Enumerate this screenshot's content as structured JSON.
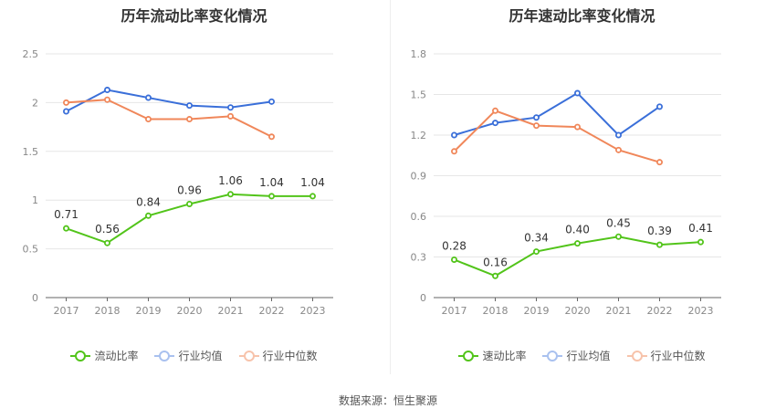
{
  "colors": {
    "main": "#52c41a",
    "avg": "#3a6fd9",
    "median": "#f0875a"
  },
  "source": "数据来源：恒生聚源",
  "chart_data": [
    {
      "type": "line",
      "title": "历年流动比率变化情况",
      "categories": [
        "2017",
        "2018",
        "2019",
        "2020",
        "2021",
        "2022",
        "2023"
      ],
      "ylim": [
        0,
        2.5
      ],
      "yticks": [
        "0",
        "0.5",
        "1",
        "1.5",
        "2",
        "2.5"
      ],
      "ytick_values": [
        0,
        0.5,
        1,
        1.5,
        2,
        2.5
      ],
      "series": [
        {
          "name": "流动比率",
          "key": "main",
          "values": [
            0.71,
            0.56,
            0.84,
            0.96,
            1.06,
            1.04,
            1.04
          ],
          "labels": [
            "0.71",
            "0.56",
            "0.84",
            "0.96",
            "1.06",
            "1.04",
            "1.04"
          ]
        },
        {
          "name": "行业均值",
          "key": "avg",
          "values": [
            1.91,
            2.13,
            2.05,
            1.97,
            1.95,
            2.01,
            null
          ]
        },
        {
          "name": "行业中位数",
          "key": "median",
          "values": [
            2.0,
            2.03,
            1.83,
            1.83,
            1.86,
            1.65,
            null
          ]
        }
      ]
    },
    {
      "type": "line",
      "title": "历年速动比率变化情况",
      "categories": [
        "2017",
        "2018",
        "2019",
        "2020",
        "2021",
        "2022",
        "2023"
      ],
      "ylim": [
        0,
        1.8
      ],
      "yticks": [
        "0",
        "0.3",
        "0.6",
        "0.9",
        "1.2",
        "1.5",
        "1.8"
      ],
      "ytick_values": [
        0,
        0.3,
        0.6,
        0.9,
        1.2,
        1.5,
        1.8
      ],
      "series": [
        {
          "name": "速动比率",
          "key": "main",
          "values": [
            0.28,
            0.16,
            0.34,
            0.4,
            0.45,
            0.39,
            0.41
          ],
          "labels": [
            "0.28",
            "0.16",
            "0.34",
            "0.40",
            "0.45",
            "0.39",
            "0.41"
          ]
        },
        {
          "name": "行业均值",
          "key": "avg",
          "values": [
            1.2,
            1.29,
            1.33,
            1.51,
            1.2,
            1.41,
            null
          ]
        },
        {
          "name": "行业中位数",
          "key": "median",
          "values": [
            1.08,
            1.38,
            1.27,
            1.26,
            1.09,
            1.0,
            null
          ]
        }
      ]
    }
  ]
}
